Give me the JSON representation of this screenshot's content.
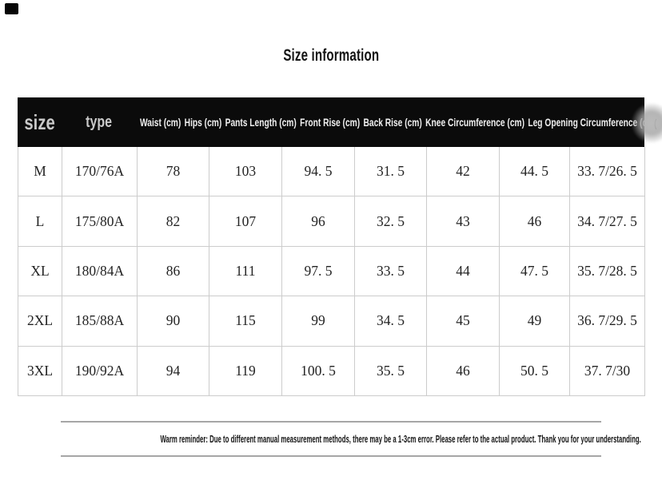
{
  "page": {
    "title": "Size information"
  },
  "colors": {
    "page_bg": "#ffffff",
    "header_bg": "#0b0b0b",
    "header_text": "#f0f0f0",
    "header_text_dim": "#c9c9c9",
    "grid_line": "#cccccc",
    "data_text": "#232323",
    "divider_line": "#a6a6a6"
  },
  "table": {
    "size_label": "size",
    "type_label": "type",
    "measure_headers": [
      "Waist (cm)",
      "Hips (cm)",
      "Pants Length (cm)",
      "Front Rise (cm)",
      "Back Rise (cm)",
      "Knee Circumference (cm)",
      "Leg Opening Circumference (cm)"
    ],
    "overflow_fragment": "(",
    "rows": [
      {
        "size": "M",
        "type": "170/76A",
        "values": [
          "78",
          "103",
          "94. 5",
          "31. 5",
          "42",
          "44. 5",
          "33. 7/26. 5"
        ]
      },
      {
        "size": "L",
        "type": "175/80A",
        "values": [
          "82",
          "107",
          "96",
          "32. 5",
          "43",
          "46",
          "34. 7/27. 5"
        ]
      },
      {
        "size": "XL",
        "type": "180/84A",
        "values": [
          "86",
          "111",
          "97. 5",
          "33. 5",
          "44",
          "47. 5",
          "35. 7/28. 5"
        ]
      },
      {
        "size": "2XL",
        "type": "185/88A",
        "values": [
          "90",
          "115",
          "99",
          "34. 5",
          "45",
          "49",
          "36. 7/29. 5"
        ]
      },
      {
        "size": "3XL",
        "type": "190/92A",
        "values": [
          "94",
          "119",
          "100. 5",
          "35. 5",
          "46",
          "50. 5",
          "37. 7/30"
        ]
      }
    ]
  },
  "reminder": {
    "text": "Warm reminder: Due to different manual measurement methods, there may be a 1-3cm error. Please refer to the actual product. Thank you for your understanding."
  }
}
